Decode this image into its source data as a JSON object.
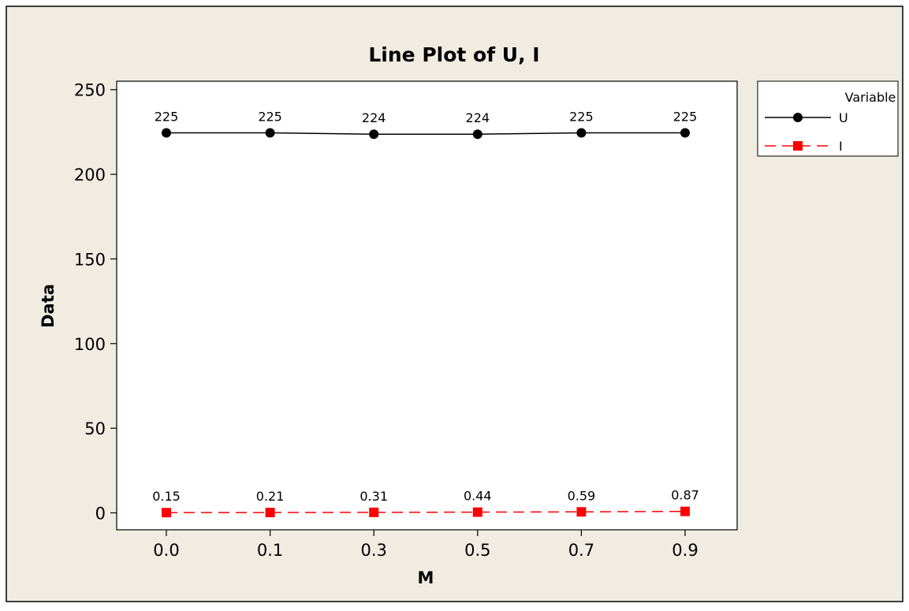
{
  "chart_data": {
    "type": "line",
    "title": "Line Plot of U, I",
    "xlabel": "M",
    "ylabel": "Data",
    "categories": [
      "0.0",
      "0.1",
      "0.3",
      "0.5",
      "0.7",
      "0.9"
    ],
    "ylim": [
      -10,
      255
    ],
    "yticks": [
      0,
      50,
      100,
      150,
      200,
      250
    ],
    "grid": false,
    "legend": {
      "title": "Variable",
      "placement": "right"
    },
    "series": [
      {
        "name": "U",
        "values": [
          224.5,
          224.5,
          223.7,
          223.7,
          224.5,
          224.5
        ],
        "labels": [
          "225",
          "225",
          "224",
          "224",
          "225",
          "225"
        ],
        "color": "#000000",
        "marker": "circle",
        "line": "solid"
      },
      {
        "name": "I",
        "values": [
          0.15,
          0.21,
          0.31,
          0.44,
          0.59,
          0.87
        ],
        "labels": [
          "0.15",
          "0.21",
          "0.31",
          "0.44",
          "0.59",
          "0.87"
        ],
        "color": "#ff0000",
        "marker": "square",
        "line": "dashed"
      }
    ],
    "colors": {
      "background": "#f0ece2",
      "plot_area": "#ffffff"
    }
  }
}
